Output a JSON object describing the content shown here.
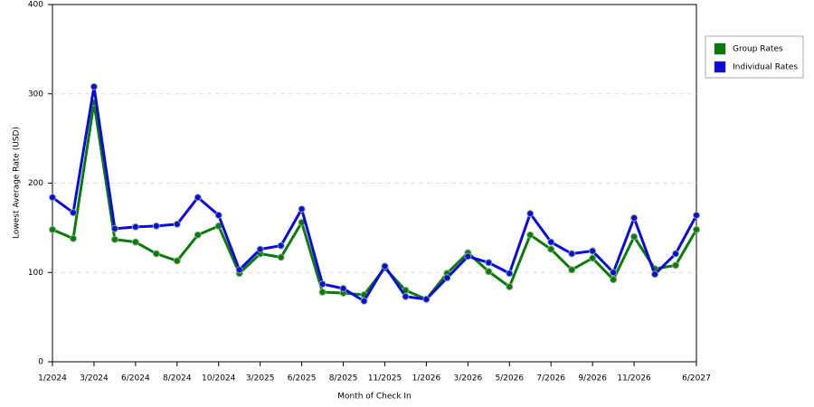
{
  "chart_data": {
    "type": "line",
    "x_label": "Month of Check In",
    "y_label": "Lowest Average Rate (USD)",
    "categories": [
      "1/2024",
      null,
      "3/2024",
      null,
      "6/2024",
      null,
      "8/2024",
      null,
      "10/2024",
      null,
      "3/2025",
      null,
      "6/2025",
      null,
      "8/2025",
      null,
      "11/2025",
      null,
      "1/2026",
      null,
      "3/2026",
      null,
      "5/2026",
      null,
      "7/2026",
      null,
      "9/2026",
      null,
      "11/2026",
      null,
      null,
      "6/2027"
    ],
    "series": [
      {
        "name": "Group Rates",
        "color": "#0a7a0a",
        "values": [
          148,
          138,
          290,
          137,
          134,
          121,
          113,
          142,
          152,
          99,
          121,
          117,
          156,
          78,
          77,
          75,
          105,
          80,
          70,
          99,
          122,
          101,
          84,
          142,
          126,
          103,
          116,
          92,
          140,
          104,
          108,
          148
        ]
      },
      {
        "name": "Individual Rates",
        "color": "#0a0adc",
        "values": [
          184,
          167,
          308,
          149,
          151,
          152,
          154,
          184,
          164,
          103,
          126,
          130,
          171,
          87,
          82,
          68,
          107,
          73,
          70,
          94,
          118,
          111,
          99,
          166,
          134,
          121,
          124,
          100,
          161,
          98,
          121,
          164
        ]
      }
    ],
    "ylim": [
      0,
      400
    ],
    "yticks": [
      0,
      100,
      200,
      300,
      400
    ],
    "grid": true,
    "legend": "right"
  }
}
